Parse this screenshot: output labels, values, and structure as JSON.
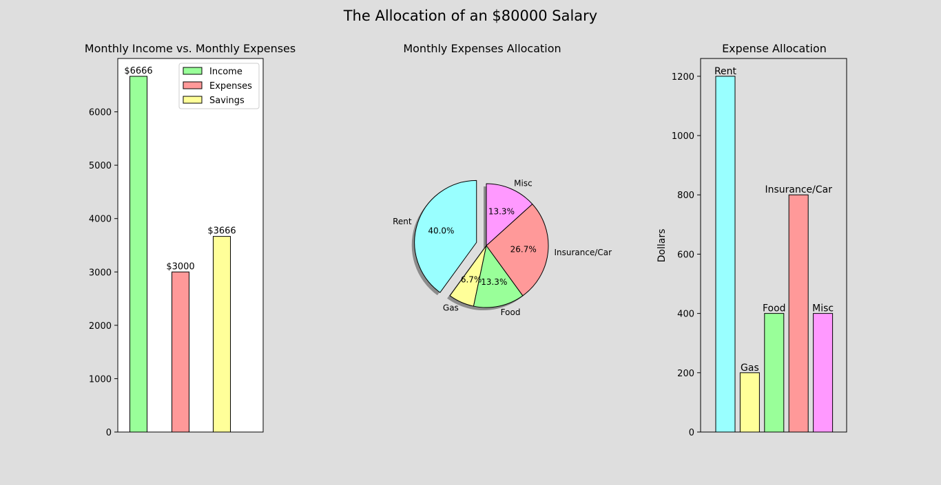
{
  "figure": {
    "title": "The Allocation of an $80000 Salary",
    "background": "#dedede"
  },
  "chart_data": [
    {
      "type": "bar",
      "title": "Monthly Income vs. Monthly Expenses",
      "xlabel": "",
      "ylabel": "",
      "ylim": [
        0,
        7000
      ],
      "yticks": [
        0,
        1000,
        2000,
        3000,
        4000,
        5000,
        6000
      ],
      "grid": false,
      "legend_position": "top-right",
      "series": [
        {
          "name": "Income",
          "value": 6666,
          "label": "$6666",
          "color": "#99ff99"
        },
        {
          "name": "Expenses",
          "value": 3000,
          "label": "$3000",
          "color": "#ff9999"
        },
        {
          "name": "Savings",
          "value": 3666,
          "label": "$3666",
          "color": "#ffff99"
        }
      ]
    },
    {
      "type": "pie",
      "title": "Monthly Expenses Allocation",
      "shadow": true,
      "slices": [
        {
          "label": "Rent",
          "value": 40.0,
          "pct": "40.0%",
          "color": "#99ffff",
          "explode": true
        },
        {
          "label": "Gas",
          "value": 6.7,
          "pct": "6.7%",
          "color": "#ffff99",
          "explode": false
        },
        {
          "label": "Food",
          "value": 13.3,
          "pct": "13.3%",
          "color": "#99ff99",
          "explode": false
        },
        {
          "label": "Insurance/Car",
          "value": 26.7,
          "pct": "26.7%",
          "color": "#ff9999",
          "explode": false
        },
        {
          "label": "Misc",
          "value": 13.3,
          "pct": "13.3%",
          "color": "#ff99ff",
          "explode": false
        }
      ]
    },
    {
      "type": "bar",
      "title": "Expense Allocation",
      "xlabel": "",
      "ylabel": "Dollars",
      "ylim": [
        0,
        1260
      ],
      "yticks": [
        0,
        200,
        400,
        600,
        800,
        1000,
        1200
      ],
      "grid": false,
      "categories": [
        "Rent",
        "Gas",
        "Food",
        "Insurance/Car",
        "Misc"
      ],
      "values": [
        1200,
        200,
        400,
        800,
        400
      ],
      "colors": [
        "#99ffff",
        "#ffff99",
        "#99ff99",
        "#ff9999",
        "#ff99ff"
      ]
    }
  ]
}
